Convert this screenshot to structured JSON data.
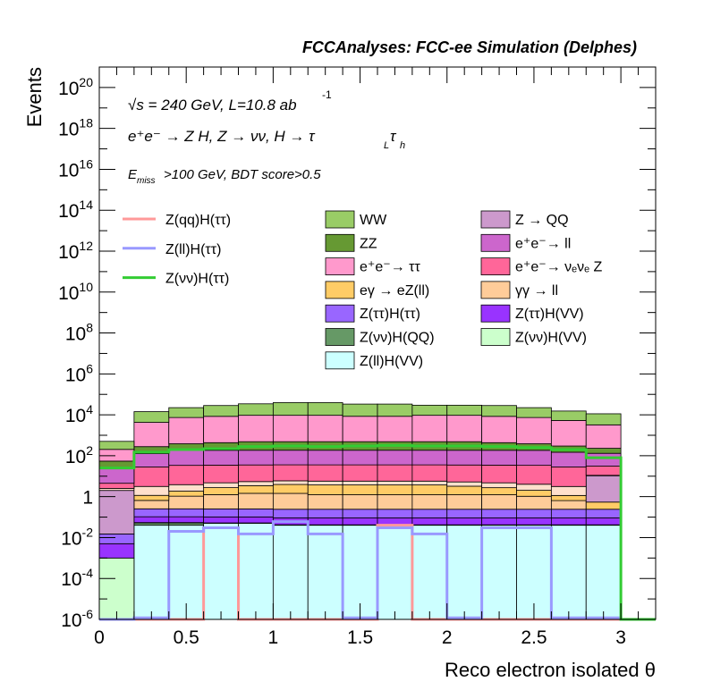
{
  "header": {
    "title": "FCCAnalyses: FCC-ee Simulation (Delphes)"
  },
  "chart_data": {
    "type": "area",
    "stacked": true,
    "log_y": true,
    "xlabel": "Reco electron isolated θ",
    "ylabel": "Events",
    "xlim": [
      0,
      3.2
    ],
    "ylim": [
      1e-06,
      1e+21
    ],
    "x_ticks": [
      {
        "value": 0,
        "label": "0"
      },
      {
        "value": 0.5,
        "label": "0.5"
      },
      {
        "value": 1,
        "label": "1"
      },
      {
        "value": 1.5,
        "label": "1.5"
      },
      {
        "value": 2,
        "label": "2"
      },
      {
        "value": 2.5,
        "label": "2.5"
      },
      {
        "value": 3,
        "label": "3"
      }
    ],
    "y_ticks": [
      {
        "value": 1e-06,
        "base": "10",
        "exp": "-6"
      },
      {
        "value": 0.0001,
        "base": "10",
        "exp": "-4"
      },
      {
        "value": 0.01,
        "base": "10",
        "exp": "-2"
      },
      {
        "value": 1,
        "base": "1",
        "exp": ""
      },
      {
        "value": 100.0,
        "base": "10",
        "exp": "2"
      },
      {
        "value": 10000.0,
        "base": "10",
        "exp": "4"
      },
      {
        "value": 1000000.0,
        "base": "10",
        "exp": "6"
      },
      {
        "value": 100000000.0,
        "base": "10",
        "exp": "8"
      },
      {
        "value": 10000000000.0,
        "base": "10",
        "exp": "10"
      },
      {
        "value": 1000000000000.0,
        "base": "10",
        "exp": "12"
      },
      {
        "value": 100000000000000.0,
        "base": "10",
        "exp": "14"
      },
      {
        "value": 1e+16,
        "base": "10",
        "exp": "16"
      },
      {
        "value": 1e+18,
        "base": "10",
        "exp": "18"
      },
      {
        "value": 1e+20,
        "base": "10",
        "exp": "20"
      }
    ],
    "bin_edges": [
      0,
      0.2,
      0.4,
      0.6,
      0.8,
      1.0,
      1.2,
      1.4,
      1.6,
      1.8,
      2.0,
      2.2,
      2.4,
      2.6,
      2.8,
      3.0,
      3.2
    ],
    "annotations": {
      "energy": "√s = 240 GeV, L=10.8 ab",
      "energy_exp": "-1",
      "process": "e⁺e⁻ → Z H, Z → νν, H → τ",
      "process_sub1": "L",
      "process_tau": "τ",
      "process_sub2": "h",
      "cut_main": "E",
      "cut_sub": "miss",
      "cut_rest": ">100 GeV, BDT score>0.5"
    },
    "stacked_series": [
      {
        "name": "Z(ll)H(VV)",
        "color": "#ccffff",
        "values": [
          1e-06,
          0.04,
          0.04,
          0.05,
          0.05,
          0.04,
          0.04,
          0.04,
          0.04,
          0.04,
          0.04,
          0.04,
          0.04,
          0.04,
          0.04,
          0,
          0
        ]
      },
      {
        "name": "Z(νν)H(QQ)",
        "color": "#669966",
        "values": [
          0,
          0.012,
          0.012,
          0,
          0,
          0,
          0,
          0,
          0,
          0,
          0,
          0,
          0,
          0,
          0,
          0,
          0
        ]
      },
      {
        "name": "Z(νν)H(VV)",
        "color": "#ccffcc",
        "values": [
          0.001,
          0.002,
          0.002,
          0.002,
          0.002,
          0.002,
          0.002,
          0.002,
          0.002,
          0.002,
          0.002,
          0.002,
          0.002,
          0.002,
          0.002,
          0,
          0
        ]
      },
      {
        "name": "Z(ττ)H(VV)",
        "color": "#9933ff",
        "values": [
          0.004,
          0.05,
          0.05,
          0.05,
          0.05,
          0.05,
          0.05,
          0.05,
          0.05,
          0.05,
          0.05,
          0.05,
          0.05,
          0.05,
          0.05,
          0,
          0
        ]
      },
      {
        "name": "Z(ττ)H(ττ)",
        "color": "#9966ff",
        "values": [
          0.01,
          0.15,
          0.15,
          0.15,
          0.15,
          0.15,
          0.15,
          0.15,
          0.15,
          0.15,
          0.15,
          0.15,
          0.15,
          0.15,
          0.15,
          0,
          0
        ]
      },
      {
        "name": "γγ → ll",
        "color": "#ffcc99",
        "values": [
          0,
          0.4,
          0.8,
          1.0,
          1.2,
          1.2,
          1.0,
          1.0,
          1.0,
          1.0,
          1.0,
          1.0,
          0.8,
          0.4,
          0,
          0,
          0
        ]
      },
      {
        "name": "eγ → eZ(ll)",
        "color": "#ffcc66",
        "values": [
          0,
          0.5,
          0.8,
          1.5,
          2.0,
          2.5,
          2.5,
          2.5,
          2.5,
          2.5,
          2.0,
          1.5,
          1.0,
          0.5,
          0.3,
          0,
          0
        ]
      },
      {
        "name": "Z → QQ",
        "color": "#cc99cc",
        "values": [
          2,
          0,
          0,
          0,
          0,
          0,
          0,
          0,
          0,
          0,
          0,
          0,
          0,
          0,
          10,
          0,
          0
        ]
      },
      {
        "name": "Z(qq)H(ττ)",
        "color": "#ffe0cc",
        "values": [
          0.5,
          2,
          2,
          2,
          2,
          2,
          2,
          2,
          2,
          2,
          2,
          2,
          2,
          2,
          0.5,
          0,
          0
        ]
      },
      {
        "name": "e⁺e⁻→ νₑνₑ Z",
        "color": "#ff6699",
        "values": [
          2,
          25,
          30,
          30,
          30,
          30,
          30,
          30,
          30,
          30,
          30,
          30,
          30,
          25,
          20,
          0,
          0
        ]
      },
      {
        "name": "e⁺e⁻→ ll",
        "color": "#cc66cc",
        "values": [
          20,
          100,
          150,
          150,
          150,
          150,
          150,
          150,
          150,
          150,
          150,
          150,
          150,
          120,
          100,
          0,
          0
        ]
      },
      {
        "name": "ZZ",
        "color": "#669933",
        "values": [
          30,
          150,
          200,
          250,
          300,
          300,
          300,
          300,
          300,
          300,
          300,
          250,
          200,
          150,
          100,
          0,
          0
        ]
      },
      {
        "name": "e⁺e⁻→ ττ",
        "color": "#ff99cc",
        "values": [
          150,
          4000,
          7000,
          8000,
          9000,
          9000,
          9000,
          8000,
          8000,
          9000,
          9000,
          8000,
          7000,
          5000,
          3000,
          0,
          0
        ]
      },
      {
        "name": "WW",
        "color": "#99cc66",
        "values": [
          300,
          10000,
          15000,
          20000,
          25000,
          30000,
          30000,
          25000,
          25000,
          20000,
          20000,
          20000,
          15000,
          10000,
          8000,
          0,
          0
        ]
      }
    ],
    "line_series": [
      {
        "name": "Z(qq)H(ττ)",
        "color": "#ff9999",
        "values": [
          1e-06,
          1e-06,
          1e-06,
          0.03,
          1e-06,
          1e-06,
          1e-06,
          1e-06,
          0.04,
          1e-06,
          1e-06,
          1e-06,
          1e-06,
          1e-06,
          1e-06,
          1e-06,
          1e-06
        ]
      },
      {
        "name": "Z(ll)H(ττ)",
        "color": "#9999ff",
        "values": [
          1e-06,
          1.2e-06,
          0.02,
          0.03,
          0.015,
          0.06,
          0.015,
          1.2e-06,
          0.03,
          0.015,
          1.2e-06,
          0.03,
          0.03,
          1.2e-06,
          1.2e-06,
          1e-06,
          1e-06
        ]
      },
      {
        "name": "Z(νν)H(ττ)",
        "color": "#33cc33",
        "values": [
          25,
          150,
          200,
          220,
          280,
          300,
          280,
          300,
          320,
          300,
          300,
          280,
          250,
          200,
          80,
          1e-06,
          1e-06
        ]
      }
    ],
    "legend": {
      "col1": [
        "Z(qq)H(ττ)",
        "Z(ll)H(ττ)",
        "Z(νν)H(ττ)"
      ],
      "col2": [
        {
          "label": "WW",
          "color": "#99cc66"
        },
        {
          "label": "ZZ",
          "color": "#669933"
        },
        {
          "label": "e⁺e⁻→ ττ",
          "color": "#ff99cc"
        },
        {
          "label": "eγ → eZ(ll)",
          "color": "#ffcc66"
        },
        {
          "label": "Z(ττ)H(ττ)",
          "color": "#9966ff"
        },
        {
          "label": "Z(νν)H(QQ)",
          "color": "#669966"
        },
        {
          "label": "Z(ll)H(VV)",
          "color": "#ccffff"
        }
      ],
      "col3": [
        {
          "label": "Z → QQ",
          "color": "#cc99cc"
        },
        {
          "label": "e⁺e⁻→ ll",
          "color": "#cc66cc"
        },
        {
          "label": "e⁺e⁻→ νₑνₑ Z",
          "color": "#ff6699"
        },
        {
          "label": "γγ → ll",
          "color": "#ffcc99"
        },
        {
          "label": "Z(ττ)H(VV)",
          "color": "#9933ff"
        },
        {
          "label": "Z(νν)H(VV)",
          "color": "#ccffcc"
        }
      ]
    }
  }
}
